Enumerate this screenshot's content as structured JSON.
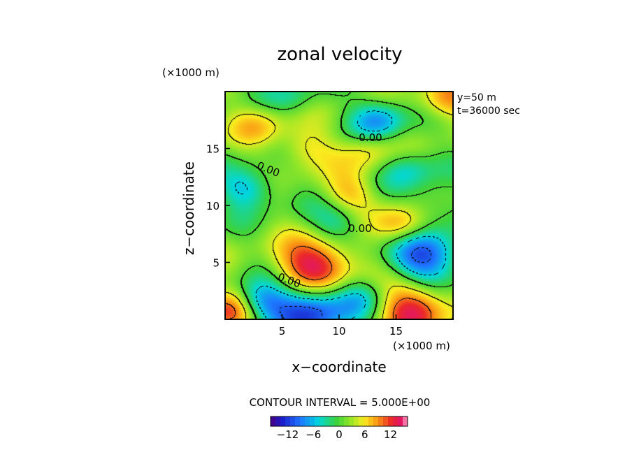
{
  "chart_data": {
    "type": "heatmap",
    "title": "zonal velocity",
    "xlabel": "x−coordinate",
    "ylabel": "z−coordinate",
    "x_unit_label": "(×1000 m)",
    "y_unit_label": "(×1000 m)",
    "xlim": [
      0,
      20
    ],
    "ylim": [
      0,
      20
    ],
    "x_ticks": [
      5,
      10,
      15
    ],
    "y_ticks": [
      5,
      10,
      15
    ],
    "annotations": [
      "y=50  m",
      "t=36000 sec"
    ],
    "contour_labels": [
      "0.00",
      "0.00",
      "0.00",
      "0.00"
    ],
    "contour_interval_text": "CONTOUR INTERVAL = 5.000E+00",
    "colorbar": {
      "ticks": [
        "−12",
        "−6",
        "0",
        "6",
        "12"
      ],
      "tick_values": [
        -12,
        -6,
        0,
        6,
        12
      ],
      "range": [
        -16,
        16
      ]
    },
    "features": [
      {
        "x": 8.0,
        "z": 4.6,
        "value": 14
      },
      {
        "x": 16.5,
        "z": 1.0,
        "value": 12
      },
      {
        "x": 0.3,
        "z": 0.8,
        "value": 10
      },
      {
        "x": 19.5,
        "z": 19.2,
        "value": 8
      },
      {
        "x": 15.5,
        "z": 8.2,
        "value": 9
      },
      {
        "x": 17.5,
        "z": 5.5,
        "value": -13
      },
      {
        "x": 7.5,
        "z": 0.8,
        "value": -14
      },
      {
        "x": 13.5,
        "z": 17.5,
        "value": -9
      },
      {
        "x": 2.0,
        "z": 11.5,
        "value": -8
      },
      {
        "x": 10.0,
        "z": 8.5,
        "value": -6
      },
      {
        "x": 16.0,
        "z": 13.2,
        "value": -6
      },
      {
        "x": 3.0,
        "z": 17.0,
        "value": 5
      },
      {
        "x": 7.0,
        "z": 15.0,
        "value": 5
      },
      {
        "x": 11.0,
        "z": 11.0,
        "value": 6
      },
      {
        "x": 12.5,
        "z": 14.8,
        "value": 5
      },
      {
        "x": 3.0,
        "z": 1.5,
        "value": -9
      },
      {
        "x": 12.0,
        "z": 2.0,
        "value": -6
      },
      {
        "x": 6.0,
        "z": 19.5,
        "value": -4
      },
      {
        "x": 18.0,
        "z": 10.0,
        "value": -4
      }
    ]
  }
}
